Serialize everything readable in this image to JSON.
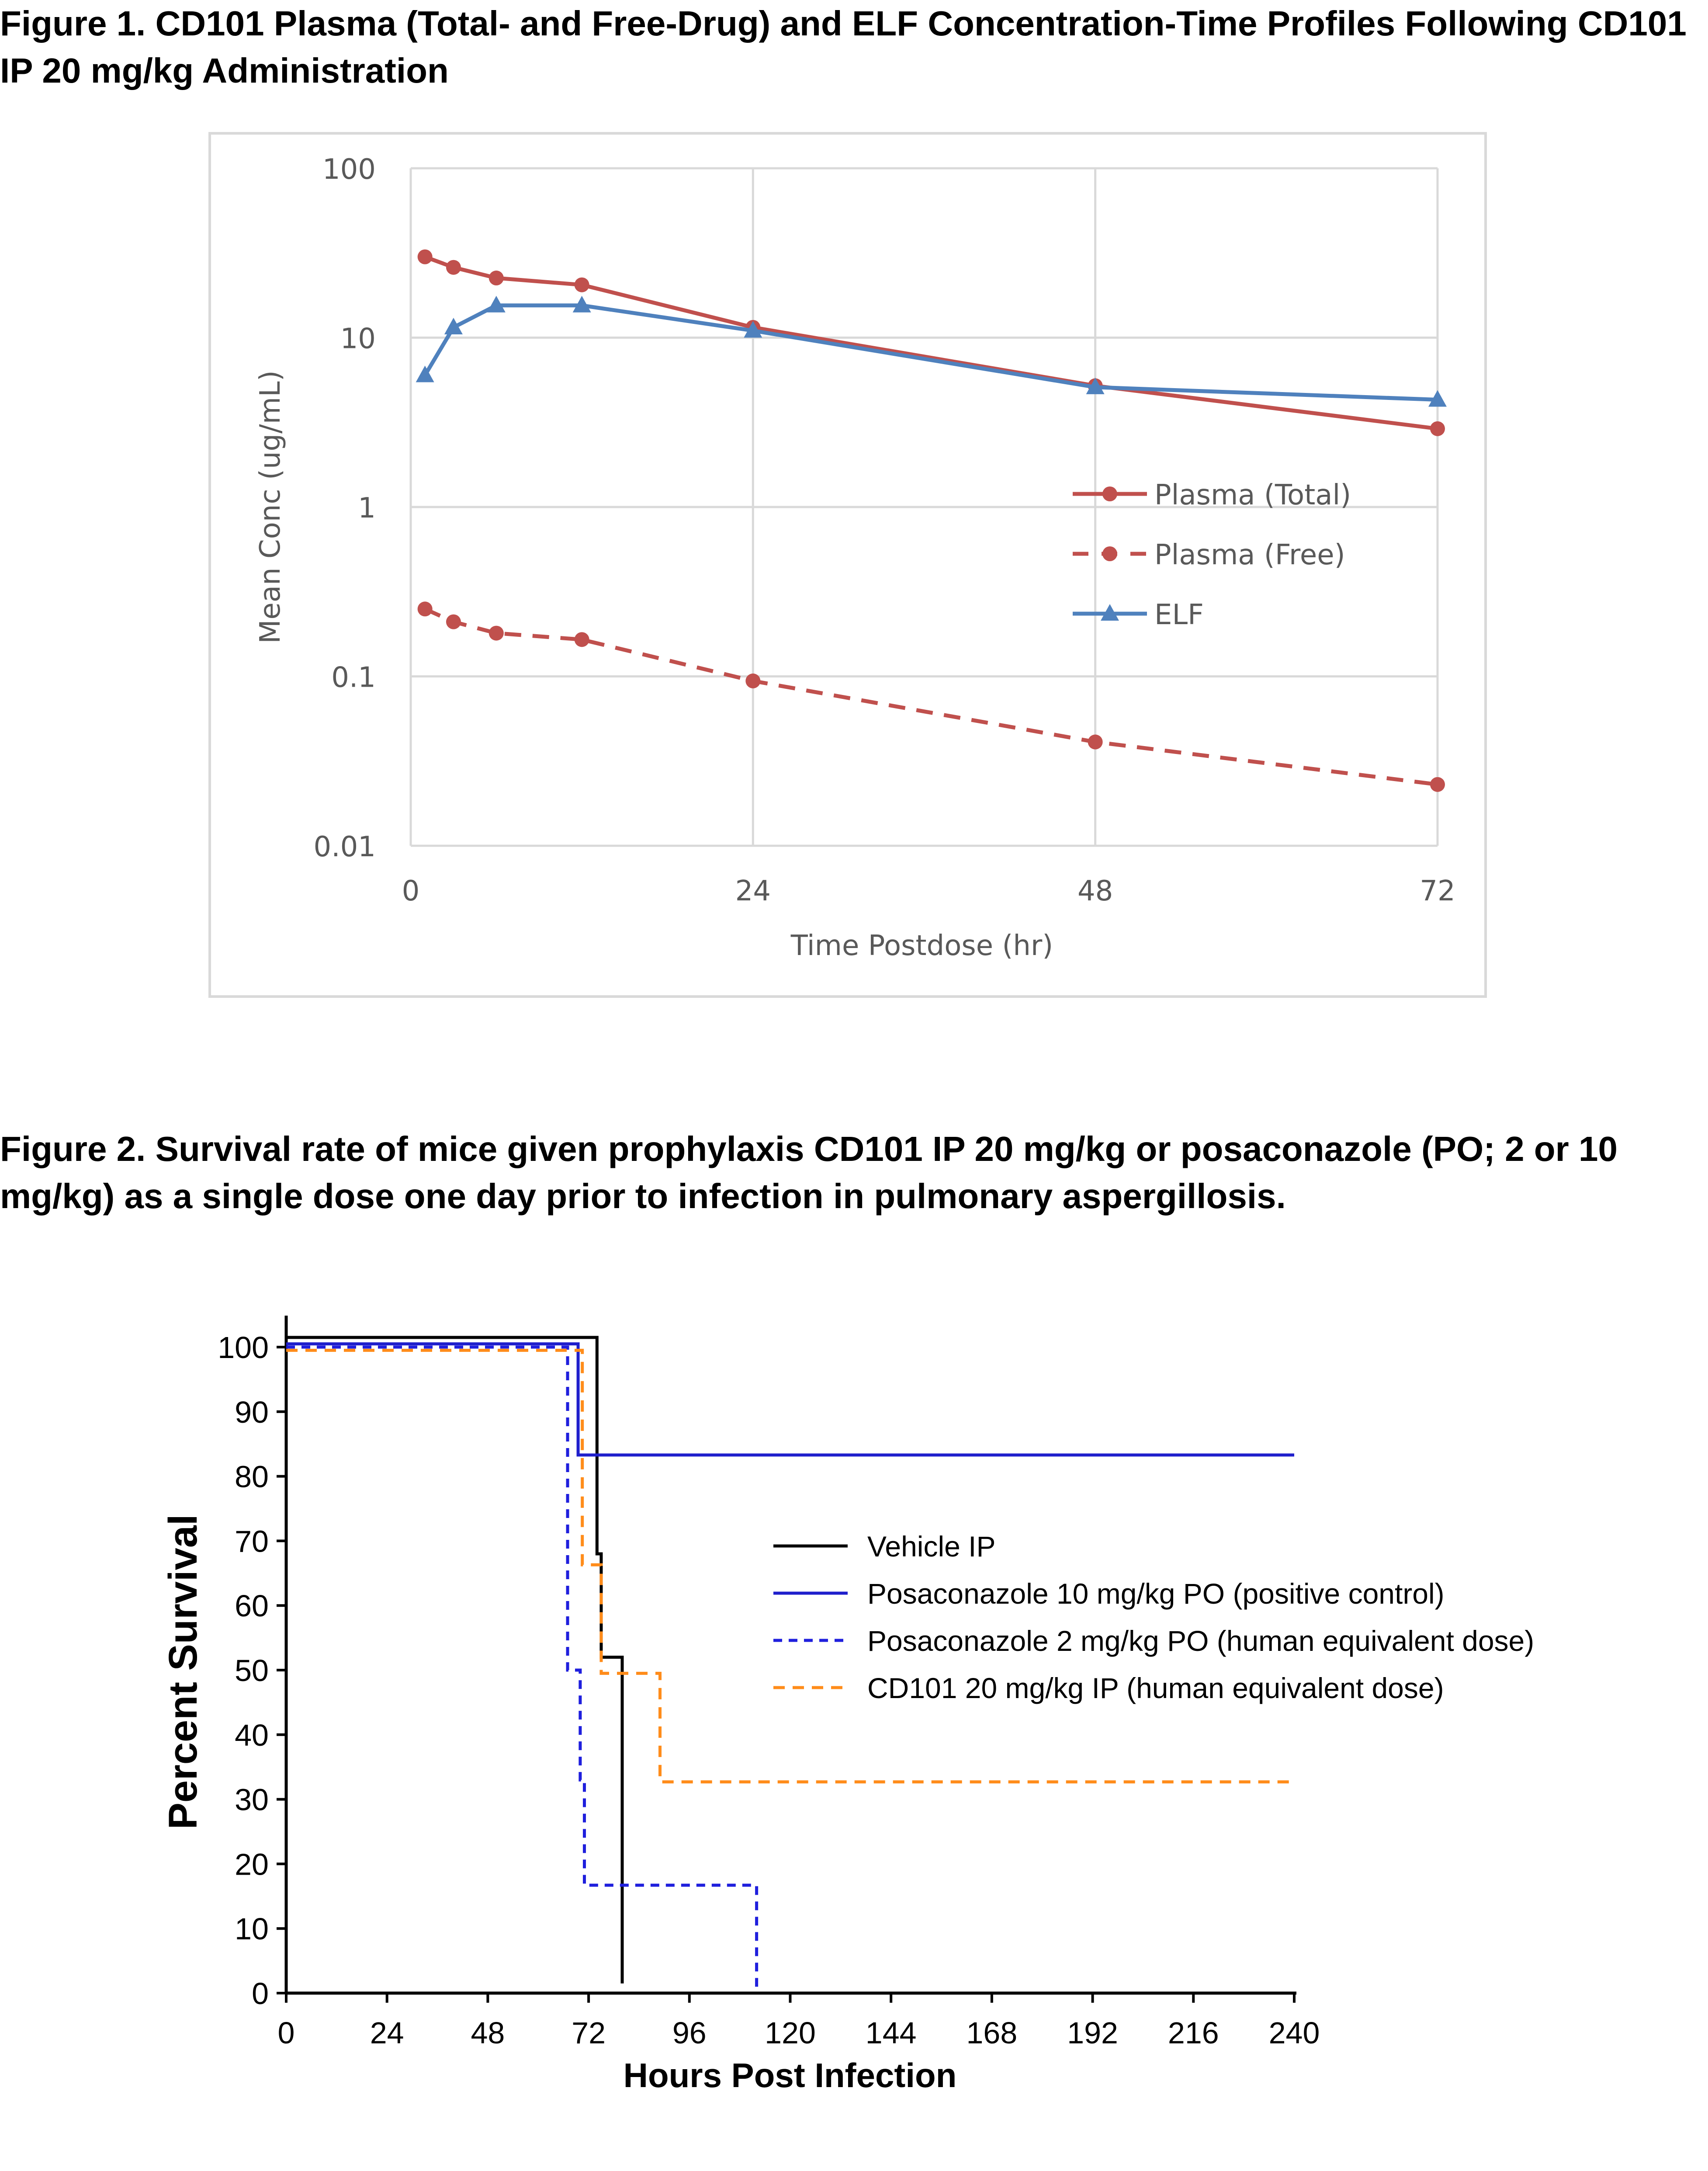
{
  "figure1_title": "Figure 1.  CD101 Plasma (Total- and Free-Drug) and ELF Concentration-Time Profiles Following CD101 IP 20 mg/kg Administration",
  "figure2_title": "Figure 2.  Survival rate of mice given prophylaxis CD101 IP 20 mg/kg or posaconazole (PO; 2 or 10 mg/kg) as a single dose one day prior to infection in pulmonary aspergillosis.",
  "chart_data": [
    {
      "type": "line",
      "xlabel": "Time Postdose (hr)",
      "ylabel": "Mean Conc (ug/mL)",
      "yscale": "log",
      "xlim": [
        0,
        72
      ],
      "ylim": [
        0.01,
        100
      ],
      "xticks": [
        "0",
        "24",
        "48",
        "72"
      ],
      "yticks": [
        "100",
        "10",
        "1",
        "0.1",
        "0.01"
      ],
      "grid": true,
      "legend_position": "right",
      "series": [
        {
          "name": "Plasma (Total)",
          "color": "#c0504d",
          "style": "solid",
          "marker": "circle",
          "x": [
            1,
            3,
            6,
            12,
            24,
            48,
            72
          ],
          "y": [
            30,
            26,
            22.5,
            20.5,
            11.5,
            5.2,
            2.9
          ]
        },
        {
          "name": "Plasma (Free)",
          "color": "#c0504d",
          "style": "dashed",
          "marker": "circle",
          "x": [
            1,
            3,
            6,
            12,
            24,
            48,
            72
          ],
          "y": [
            0.25,
            0.21,
            0.18,
            0.165,
            0.094,
            0.041,
            0.023
          ]
        },
        {
          "name": "ELF",
          "color": "#4f81bd",
          "style": "solid",
          "marker": "triangle",
          "x": [
            1,
            3,
            6,
            12,
            24,
            48,
            72
          ],
          "y": [
            6.0,
            11.5,
            15.5,
            15.5,
            11.0,
            5.1,
            4.3
          ]
        }
      ]
    },
    {
      "type": "line",
      "xlabel": "Hours Post Infection",
      "ylabel": "Percent Survival",
      "xlim": [
        0,
        240
      ],
      "ylim": [
        0,
        100
      ],
      "xticks": [
        "0",
        "24",
        "48",
        "72",
        "96",
        "120",
        "144",
        "168",
        "192",
        "216",
        "240"
      ],
      "yticks": [
        "0",
        "10",
        "20",
        "30",
        "40",
        "50",
        "60",
        "70",
        "80",
        "90",
        "100"
      ],
      "grid": false,
      "legend_position": "right",
      "series": [
        {
          "name": "Vehicle IP",
          "color": "#000000",
          "style": "solid",
          "step": true,
          "x": [
            0,
            74,
            74,
            75,
            75,
            80,
            80
          ],
          "y": [
            101.5,
            101.5,
            68,
            68,
            52,
            52,
            1.5
          ]
        },
        {
          "name": "Posaconazole 10 mg/kg PO (positive control)",
          "color": "#1f1fcc",
          "style": "solid",
          "step": true,
          "x": [
            0,
            69.5,
            69.5,
            240
          ],
          "y": [
            100.5,
            100.5,
            83.3,
            83.3
          ]
        },
        {
          "name": "Posaconazole 2 mg/kg PO (human equivalent dose)",
          "color": "#1f1fdd",
          "style": "dotted",
          "step": true,
          "x": [
            0,
            67,
            67,
            70,
            70,
            71,
            71,
            112,
            112
          ],
          "y": [
            100,
            100,
            50,
            50,
            33,
            33,
            16.7,
            16.7,
            0
          ]
        },
        {
          "name": "CD101 20 mg/kg IP (human equivalent dose)",
          "color": "#ff8c1a",
          "style": "dashed",
          "step": true,
          "x": [
            0,
            70.5,
            70.5,
            75,
            75,
            89,
            89,
            240
          ],
          "y": [
            99.5,
            99.5,
            66.3,
            66.3,
            49.5,
            49.5,
            32.7,
            32.7
          ]
        }
      ]
    }
  ]
}
